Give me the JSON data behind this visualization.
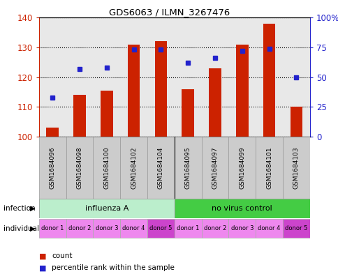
{
  "title": "GDS6063 / ILMN_3267476",
  "samples": [
    "GSM1684096",
    "GSM1684098",
    "GSM1684100",
    "GSM1684102",
    "GSM1684104",
    "GSM1684095",
    "GSM1684097",
    "GSM1684099",
    "GSM1684101",
    "GSM1684103"
  ],
  "counts": [
    103,
    114,
    115.5,
    131,
    132,
    116,
    123,
    131,
    138,
    110
  ],
  "percentiles": [
    33,
    57,
    58,
    73,
    73,
    62,
    66,
    72,
    74,
    50
  ],
  "ylim_left": [
    100,
    140
  ],
  "ylim_right": [
    0,
    100
  ],
  "yticks_left": [
    100,
    110,
    120,
    130,
    140
  ],
  "yticks_right": [
    0,
    25,
    50,
    75,
    100
  ],
  "bar_color": "#cc2200",
  "dot_color": "#2222cc",
  "bar_base": 100,
  "infection_groups": [
    {
      "label": "influenza A",
      "start": 0,
      "end": 5,
      "color": "#bbeecc"
    },
    {
      "label": "no virus control",
      "start": 5,
      "end": 10,
      "color": "#44cc44"
    }
  ],
  "individual_labels": [
    "donor 1",
    "donor 2",
    "donor 3",
    "donor 4",
    "donor 5",
    "donor 1",
    "donor 2",
    "donor 3",
    "donor 4",
    "donor 5"
  ],
  "individual_colors": [
    "#ee88ee",
    "#ee88ee",
    "#ee88ee",
    "#ee88ee",
    "#cc44cc",
    "#ee88ee",
    "#ee88ee",
    "#ee88ee",
    "#ee88ee",
    "#cc44cc"
  ],
  "infection_label": "infection",
  "individual_label": "individual",
  "legend_count_label": "count",
  "legend_pct_label": "percentile rank within the sample",
  "bar_color_label_color": "#cc2200",
  "dot_color_label_color": "#2222cc",
  "bg_color": "#ffffff",
  "plot_bg_color": "#e8e8e8",
  "sample_bg_color": "#cccccc",
  "grid_color": "#000000",
  "right_tick_labels": [
    "0",
    "25",
    "50",
    "75",
    "100%"
  ]
}
